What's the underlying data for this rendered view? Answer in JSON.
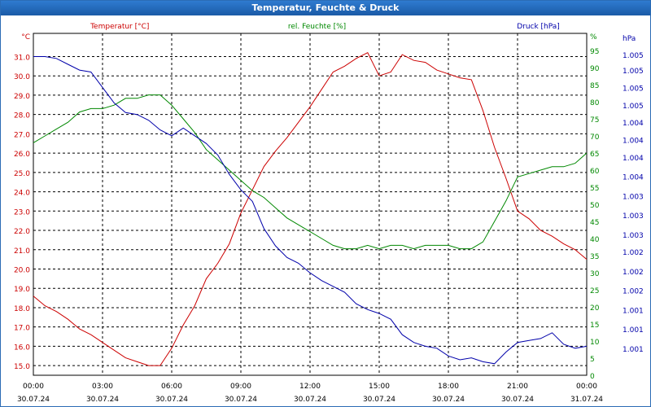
{
  "window": {
    "title": "Temperatur, Feuchte & Druck"
  },
  "colors": {
    "temperature": "#cc0000",
    "humidity": "#008800",
    "pressure": "#0000aa",
    "grid": "#000000",
    "title_bar": "#1f65b8"
  },
  "chart_data": {
    "type": "line",
    "title": "Temperatur, Feuchte & Druck",
    "grid": true,
    "x_ticks": [
      {
        "time": "00:00",
        "date": "30.07.24"
      },
      {
        "time": "03:00",
        "date": "30.07.24"
      },
      {
        "time": "06:00",
        "date": "30.07.24"
      },
      {
        "time": "09:00",
        "date": "30.07.24"
      },
      {
        "time": "12:00",
        "date": "30.07.24"
      },
      {
        "time": "15:00",
        "date": "30.07.24"
      },
      {
        "time": "18:00",
        "date": "30.07.24"
      },
      {
        "time": "21:00",
        "date": "30.07.24"
      },
      {
        "time": "00:00",
        "date": "31.07.24"
      }
    ],
    "x_range_hours": [
      0,
      24
    ],
    "axes": {
      "temperature": {
        "label": "Temperatur [°C]",
        "unit": "°C",
        "range": [
          14.5,
          32.2
        ],
        "ticks": [
          "15.0",
          "16.0",
          "17.0",
          "18.0",
          "19.0",
          "20.0",
          "21.0",
          "22.0",
          "23.0",
          "24.0",
          "25.0",
          "26.0",
          "27.0",
          "28.0",
          "29.0",
          "30.0",
          "31.0"
        ],
        "tick_values": [
          15,
          16,
          17,
          18,
          19,
          20,
          21,
          22,
          23,
          24,
          25,
          26,
          27,
          28,
          29,
          30,
          31
        ]
      },
      "humidity": {
        "label": "rel. Feuchte [%]",
        "unit": "%",
        "range": [
          0,
          100
        ],
        "ticks": [
          "0",
          "5",
          "10",
          "15",
          "20",
          "25",
          "30",
          "35",
          "40",
          "45",
          "50",
          "55",
          "60",
          "65",
          "70",
          "75",
          "80",
          "85",
          "90",
          "95"
        ],
        "tick_values": [
          0,
          5,
          10,
          15,
          20,
          25,
          30,
          35,
          40,
          45,
          50,
          55,
          60,
          65,
          70,
          75,
          80,
          85,
          90,
          95
        ]
      },
      "pressure": {
        "label": "Druck [hPa]",
        "unit": "hPa",
        "ticks": [
          "1.001",
          "1.001",
          "1.001",
          "1.002",
          "1.002",
          "1.002",
          "1.003",
          "1.003",
          "1.003",
          "1.004",
          "1.004",
          "1.004",
          "1.004",
          "1.005",
          "1.005",
          "1.005",
          "1.005"
        ],
        "tick_temperature_positions": [
          15.9,
          16.9,
          17.9,
          18.9,
          19.9,
          20.9,
          21.8,
          22.8,
          23.8,
          24.8,
          25.8,
          26.7,
          27.6,
          28.5,
          29.4,
          30.3,
          31.1
        ]
      }
    },
    "series": [
      {
        "name": "Temperatur [°C]",
        "axis": "temperature",
        "x": [
          0,
          0.5,
          1,
          1.5,
          2,
          2.5,
          3,
          3.5,
          4,
          4.5,
          5,
          5.5,
          6,
          6.5,
          7,
          7.5,
          8,
          8.5,
          9,
          9.5,
          10,
          10.5,
          11,
          11.5,
          12,
          12.5,
          13,
          13.5,
          14,
          14.5,
          15,
          15.5,
          16,
          16.5,
          17,
          17.5,
          18,
          18.5,
          19,
          19.5,
          20,
          20.5,
          21,
          21.5,
          22,
          22.5,
          23,
          23.5,
          24
        ],
        "values": [
          18.6,
          18.1,
          17.8,
          17.4,
          16.9,
          16.6,
          16.2,
          15.8,
          15.4,
          15.2,
          15.0,
          15.0,
          15.9,
          17.1,
          18.1,
          19.5,
          20.3,
          21.3,
          22.9,
          24.1,
          25.3,
          26.1,
          26.8,
          27.6,
          28.4,
          29.3,
          30.2,
          30.5,
          30.9,
          31.2,
          30.0,
          30.2,
          31.1,
          30.8,
          30.7,
          30.3,
          30.1,
          29.9,
          29.8,
          28.2,
          26.3,
          24.7,
          23.0,
          22.6,
          22.0,
          21.7,
          21.3,
          21.0,
          20.5
        ]
      },
      {
        "name": "rel. Feuchte [%]",
        "axis": "humidity",
        "x": [
          0,
          0.5,
          1,
          1.5,
          2,
          2.5,
          3,
          3.5,
          4,
          4.5,
          5,
          5.5,
          6,
          6.5,
          7,
          7.5,
          8,
          8.5,
          9,
          9.5,
          10,
          10.5,
          11,
          11.5,
          12,
          12.5,
          13,
          13.5,
          14,
          14.5,
          15,
          15.5,
          16,
          16.5,
          17,
          17.5,
          18,
          18.5,
          19,
          19.5,
          20,
          20.5,
          21,
          21.5,
          22,
          22.5,
          23,
          23.5,
          24
        ],
        "values": [
          68,
          70,
          72,
          74,
          77,
          78,
          78,
          79,
          81,
          81,
          82,
          82,
          79,
          75,
          71,
          66,
          63,
          60,
          57,
          54,
          52,
          49,
          46,
          44,
          42,
          40,
          38,
          37,
          37,
          38,
          37,
          38,
          38,
          37,
          38,
          38,
          38,
          37,
          37,
          39,
          45,
          51,
          58,
          59,
          60,
          61,
          61,
          62,
          65
        ]
      },
      {
        "name": "Druck [hPa]",
        "axis": "temperature",
        "x": [
          0,
          0.5,
          1,
          1.5,
          2,
          2.5,
          3,
          3.5,
          4,
          4.5,
          5,
          5.5,
          6,
          6.5,
          7,
          7.5,
          8,
          8.5,
          9,
          9.5,
          10,
          10.5,
          11,
          11.5,
          12,
          12.5,
          13,
          13.5,
          14,
          14.5,
          15,
          15.5,
          16,
          16.5,
          17,
          17.5,
          18,
          18.5,
          19,
          19.5,
          20,
          20.5,
          21,
          21.5,
          22,
          22.5,
          23,
          23.5,
          24
        ],
        "values": [
          31.0,
          31.0,
          30.9,
          30.6,
          30.3,
          30.2,
          29.4,
          28.6,
          28.1,
          28.0,
          27.7,
          27.2,
          26.9,
          27.3,
          26.9,
          26.5,
          25.9,
          24.9,
          24.1,
          23.5,
          22.1,
          21.2,
          20.6,
          20.3,
          19.8,
          19.4,
          19.1,
          18.8,
          18.2,
          17.9,
          17.7,
          17.4,
          16.6,
          16.2,
          16.0,
          15.9,
          15.5,
          15.3,
          15.4,
          15.2,
          15.1,
          15.7,
          16.2,
          16.3,
          16.4,
          16.7,
          16.1,
          15.9,
          16.0
        ]
      }
    ]
  }
}
